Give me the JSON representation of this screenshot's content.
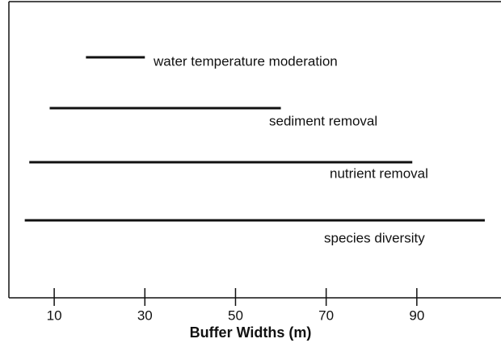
{
  "chart_data": {
    "type": "range",
    "categories": [
      "water temperature moderation",
      "sediment removal",
      "nutrient removal",
      "species diversity"
    ],
    "start": [
      17,
      9,
      4.5,
      3.5
    ],
    "end": [
      30,
      60,
      89,
      105
    ],
    "color": "#111111",
    "xlabel": "Buffer Widths (m)",
    "xlim": [
      0,
      108
    ],
    "xticks": [
      10,
      30,
      50,
      70,
      90
    ]
  }
}
